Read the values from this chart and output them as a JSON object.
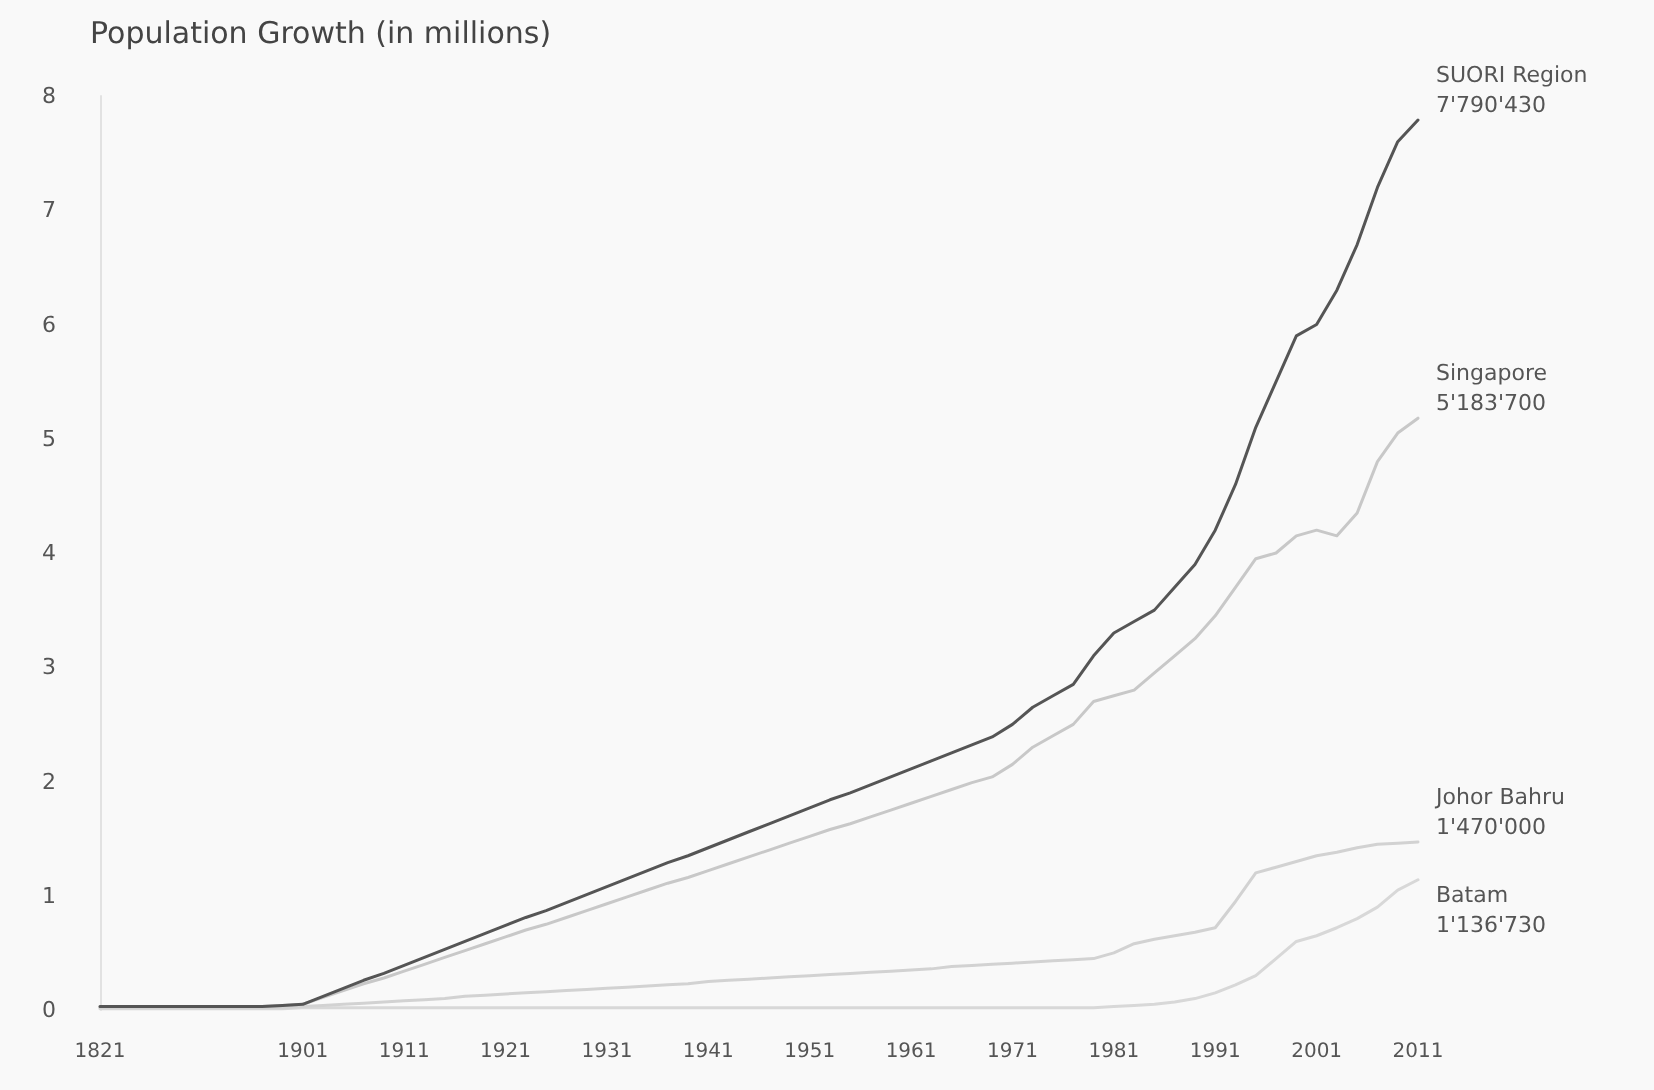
{
  "chart_data": {
    "type": "line",
    "title": "Population Growth (in millions)",
    "categories": [
      "1821",
      null,
      null,
      null,
      null,
      null,
      null,
      null,
      null,
      null,
      "1901",
      null,
      null,
      null,
      null,
      "1911",
      null,
      null,
      null,
      null,
      "1921",
      null,
      null,
      null,
      null,
      "1931",
      null,
      null,
      null,
      null,
      "1941",
      null,
      null,
      null,
      null,
      "1951",
      null,
      null,
      null,
      null,
      "1961",
      null,
      null,
      null,
      null,
      "1971",
      null,
      null,
      null,
      null,
      "1981",
      null,
      null,
      null,
      null,
      "1991",
      null,
      null,
      null,
      null,
      "2001",
      null,
      null,
      null,
      null,
      "2011"
    ],
    "ylim": [
      0,
      8
    ],
    "yticks": [
      0,
      1,
      2,
      3,
      4,
      5,
      6,
      7,
      8
    ],
    "grid": false,
    "marker": "none",
    "line_style": "solid",
    "annotations": [
      {
        "text": "7'790'430",
        "x": "2011",
        "y": 7.79
      },
      {
        "text": "5'183'700",
        "x": "2011",
        "y": 5.18
      },
      {
        "text": "1'470'000",
        "x": "2011",
        "y": 1.47
      },
      {
        "text": "1'136'730",
        "x": "2011",
        "y": 1.14
      }
    ],
    "series": [
      {
        "name": "SUORI Region",
        "color": "#555555",
        "values": [
          0.03,
          0.03,
          0.03,
          0.03,
          0.03,
          0.03,
          0.03,
          0.03,
          0.03,
          0.04,
          0.05,
          0.12,
          0.19,
          0.26,
          0.32,
          0.39,
          0.46,
          0.53,
          0.6,
          0.67,
          0.74,
          0.81,
          0.87,
          0.94,
          1.01,
          1.08,
          1.15,
          1.22,
          1.29,
          1.35,
          1.42,
          1.49,
          1.56,
          1.63,
          1.7,
          1.77,
          1.84,
          1.9,
          1.97,
          2.04,
          2.11,
          2.18,
          2.25,
          2.32,
          2.39,
          2.5,
          2.65,
          2.75,
          2.85,
          3.1,
          3.3,
          3.4,
          3.5,
          3.7,
          3.9,
          4.2,
          4.6,
          5.1,
          5.5,
          5.9,
          6.0,
          6.3,
          6.7,
          7.2,
          7.6,
          7.79
        ]
      },
      {
        "name": "Singapore",
        "color": "#c8c8c8",
        "values": [
          0.03,
          0.03,
          0.03,
          0.03,
          0.03,
          0.03,
          0.03,
          0.03,
          0.03,
          0.04,
          0.05,
          0.11,
          0.17,
          0.23,
          0.28,
          0.34,
          0.4,
          0.46,
          0.52,
          0.58,
          0.64,
          0.7,
          0.75,
          0.81,
          0.87,
          0.93,
          0.99,
          1.05,
          1.11,
          1.16,
          1.22,
          1.28,
          1.34,
          1.4,
          1.46,
          1.52,
          1.58,
          1.63,
          1.69,
          1.75,
          1.81,
          1.87,
          1.93,
          1.99,
          2.04,
          2.15,
          2.3,
          2.4,
          2.5,
          2.7,
          2.75,
          2.8,
          2.95,
          3.1,
          3.25,
          3.45,
          3.7,
          3.95,
          4.0,
          4.15,
          4.2,
          4.15,
          4.35,
          4.8,
          5.05,
          5.18
        ]
      },
      {
        "name": "Johor Bahru",
        "color": "#d2d2d2",
        "values": [
          0.02,
          0.02,
          0.02,
          0.02,
          0.02,
          0.02,
          0.02,
          0.02,
          0.02,
          0.02,
          0.03,
          0.04,
          0.05,
          0.06,
          0.07,
          0.08,
          0.09,
          0.1,
          0.12,
          0.13,
          0.14,
          0.15,
          0.16,
          0.17,
          0.18,
          0.19,
          0.2,
          0.21,
          0.22,
          0.23,
          0.25,
          0.26,
          0.27,
          0.28,
          0.29,
          0.3,
          0.31,
          0.32,
          0.33,
          0.34,
          0.35,
          0.36,
          0.38,
          0.39,
          0.4,
          0.41,
          0.42,
          0.43,
          0.44,
          0.45,
          0.5,
          0.58,
          0.62,
          0.65,
          0.68,
          0.72,
          0.95,
          1.2,
          1.25,
          1.3,
          1.35,
          1.38,
          1.42,
          1.45,
          1.46,
          1.47
        ]
      },
      {
        "name": "Batam",
        "color": "#d8d8d8",
        "values": [
          0.01,
          0.01,
          0.01,
          0.01,
          0.01,
          0.01,
          0.01,
          0.01,
          0.01,
          0.01,
          0.02,
          0.02,
          0.02,
          0.02,
          0.02,
          0.02,
          0.02,
          0.02,
          0.02,
          0.02,
          0.02,
          0.02,
          0.02,
          0.02,
          0.02,
          0.02,
          0.02,
          0.02,
          0.02,
          0.02,
          0.02,
          0.02,
          0.02,
          0.02,
          0.02,
          0.02,
          0.02,
          0.02,
          0.02,
          0.02,
          0.02,
          0.02,
          0.02,
          0.02,
          0.02,
          0.02,
          0.02,
          0.02,
          0.02,
          0.02,
          0.03,
          0.04,
          0.05,
          0.07,
          0.1,
          0.15,
          0.22,
          0.3,
          0.45,
          0.6,
          0.65,
          0.72,
          0.8,
          0.9,
          1.05,
          1.14
        ]
      }
    ]
  }
}
